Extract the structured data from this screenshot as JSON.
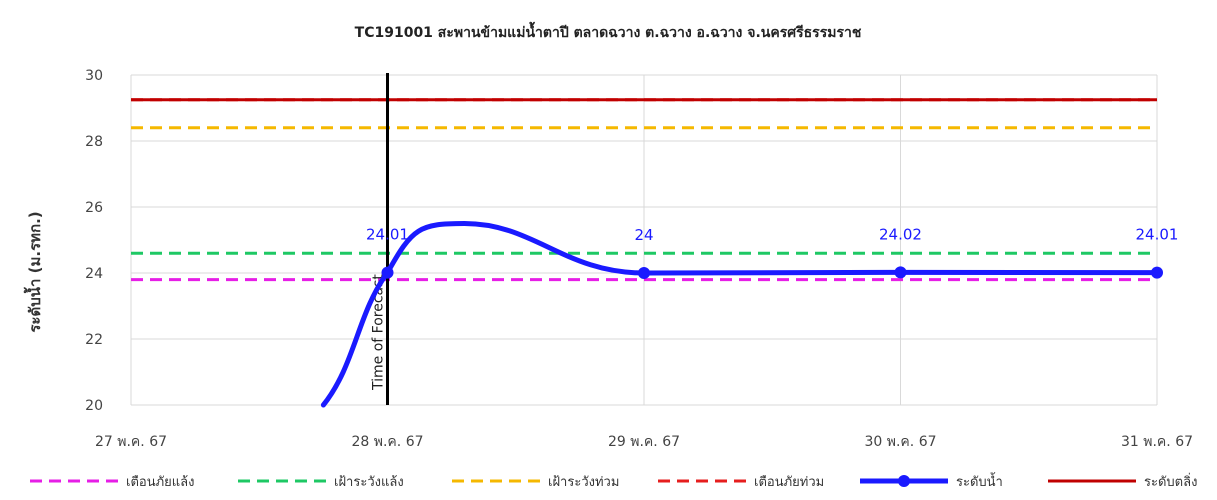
{
  "chart_data": {
    "type": "line",
    "title": "TC191001 สะพานข้ามแม่น้ำตาปี ตลาดฉวาง ต.ฉวาง อ.ฉวาง จ.นครศรีธรรมราช",
    "ylabel": "ระดับน้ำ (ม.รทก.)",
    "xlabel": "",
    "ylim": [
      20,
      30
    ],
    "yticks": [
      20,
      22,
      24,
      26,
      28,
      30
    ],
    "xticks": [
      "27 พ.ค. 67",
      "28 พ.ค. 67",
      "29 พ.ค. 67",
      "30 พ.ค. 67",
      "31 พ.ค. 67"
    ],
    "forecast_marker": {
      "x": "28 พ.ค. 67",
      "label": "Time of Forecast"
    },
    "series": [
      {
        "name": "เตือนภัยแล้ง",
        "kind": "hline",
        "y": 23.8,
        "color": "#e61ee6",
        "dash": true
      },
      {
        "name": "เฝ้าระวังแล้ง",
        "kind": "hline",
        "y": 24.6,
        "color": "#1ec864",
        "dash": true
      },
      {
        "name": "เฝ้าระวังท่วม",
        "kind": "hline",
        "y": 28.4,
        "color": "#f5b800",
        "dash": true
      },
      {
        "name": "เตือนภัยท่วม",
        "kind": "hline",
        "y": 29.25,
        "color": "#e61e1e",
        "dash": true
      },
      {
        "name": "ระดับน้ำ",
        "kind": "line",
        "color": "#1a1aff",
        "points": [
          {
            "x": "27 พ.ค. 67 18:00",
            "xpos": 0.75,
            "y": 20.0
          },
          {
            "x": "28 พ.ค. 67",
            "xpos": 1.0,
            "y": 24.01
          },
          {
            "x": "29 พ.ค. 67",
            "xpos": 2.0,
            "y": 24.0
          },
          {
            "x": "30 พ.ค. 67",
            "xpos": 3.0,
            "y": 24.02
          },
          {
            "x": "31 พ.ค. 67",
            "xpos": 4.0,
            "y": 24.01
          }
        ],
        "labels": [
          "24.01",
          "24",
          "24.02",
          "24.01"
        ],
        "peak": {
          "xpos": 1.3,
          "y": 25.5
        }
      },
      {
        "name": "ระดับตลิ่ง",
        "kind": "hline",
        "y": 29.25,
        "color": "#c00000",
        "dash": false
      }
    ],
    "grid": true,
    "legend_position": "bottom"
  }
}
